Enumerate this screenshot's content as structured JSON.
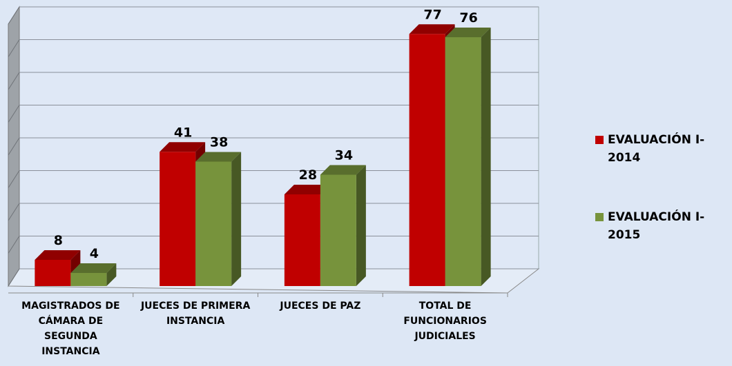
{
  "chart_data": {
    "type": "bar3d",
    "categories": [
      "MAGISTRADOS DE CÁMARA DE SEGUNDA INSTANCIA",
      "JUECES DE PRIMERA INSTANCIA",
      "JUECES DE PAZ",
      "TOTAL DE FUNCIONARIOS JUDICIALES"
    ],
    "series": [
      {
        "name": "EVALUACIÓN I-2014",
        "color": "#c00000",
        "values": [
          8,
          41,
          28,
          77
        ]
      },
      {
        "name": "EVALUACIÓN I-2015",
        "color": "#77933c",
        "values": [
          4,
          38,
          34,
          76
        ]
      }
    ],
    "ylim": [
      0,
      80
    ],
    "yticks": [
      0,
      10,
      20,
      30,
      40,
      50,
      60,
      70,
      80
    ],
    "grid": true,
    "legend": "right"
  }
}
